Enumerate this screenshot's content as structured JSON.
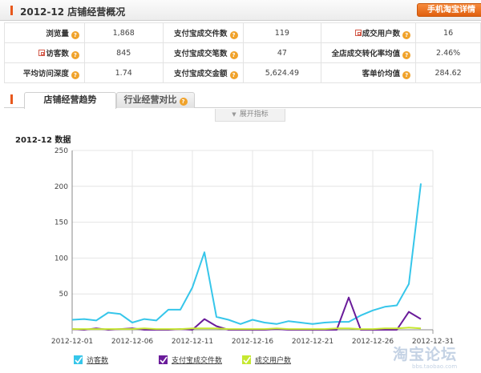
{
  "header": {
    "title": "2012-12 店铺经营概况",
    "mobile_button": "手机淘宝详情"
  },
  "stats": [
    [
      {
        "label": "浏览量",
        "value": "1,868",
        "hui": false
      },
      {
        "label": "支付宝成交件数",
        "value": "119",
        "hui": false
      },
      {
        "label": "成交用户数",
        "value": "16",
        "hui": true
      }
    ],
    [
      {
        "label": "访客数",
        "value": "845",
        "hui": true
      },
      {
        "label": "支付宝成交笔数",
        "value": "47",
        "hui": false
      },
      {
        "label": "全店成交转化率均值",
        "value": "2.46%",
        "hui": false
      }
    ],
    [
      {
        "label": "平均访问深度",
        "value": "1.74",
        "hui": false
      },
      {
        "label": "支付宝成交金额",
        "value": "5,624.49",
        "hui": false
      },
      {
        "label": "客单价均值",
        "value": "284.62",
        "hui": false
      }
    ]
  ],
  "help_icon": "?",
  "tabs": {
    "trend": "店铺经营趋势",
    "compare": "行业经营对比"
  },
  "expand_label": "展开指标",
  "watermark": {
    "logo": "淘宝论坛",
    "sub": "bbs.taobao.com"
  },
  "chart_data": {
    "type": "line",
    "title": "2012-12 数据",
    "x": [
      "2012-12-01",
      "2012-12-02",
      "2012-12-03",
      "2012-12-04",
      "2012-12-05",
      "2012-12-06",
      "2012-12-07",
      "2012-12-08",
      "2012-12-09",
      "2012-12-10",
      "2012-12-11",
      "2012-12-12",
      "2012-12-13",
      "2012-12-14",
      "2012-12-15",
      "2012-12-16",
      "2012-12-17",
      "2012-12-18",
      "2012-12-19",
      "2012-12-20",
      "2012-12-21",
      "2012-12-22",
      "2012-12-23",
      "2012-12-24",
      "2012-12-25",
      "2012-12-26",
      "2012-12-27",
      "2012-12-28",
      "2012-12-29",
      "2012-12-30",
      "2012-12-31"
    ],
    "x_tick_labels": [
      "2012-12-01",
      "2012-12-06",
      "2012-12-11",
      "2012-12-16",
      "2012-12-21",
      "2012-12-26",
      "2012-12-31"
    ],
    "ylim": [
      0,
      250
    ],
    "y_ticks": [
      50,
      100,
      150,
      200,
      250
    ],
    "grid": true,
    "legend_position": "bottom",
    "series": [
      {
        "name": "访客数",
        "color": "#36c6ea",
        "values": [
          14,
          15,
          13,
          24,
          22,
          10,
          15,
          13,
          28,
          28,
          59,
          108,
          18,
          14,
          8,
          14,
          10,
          8,
          12,
          10,
          8,
          10,
          11,
          11,
          20,
          27,
          32,
          34,
          64,
          204,
          null
        ]
      },
      {
        "name": "支付宝成交件数",
        "color": "#6a1b9a",
        "values": [
          1,
          0,
          2,
          0,
          1,
          2,
          0,
          0,
          0,
          1,
          0,
          15,
          5,
          0,
          0,
          0,
          0,
          1,
          0,
          0,
          0,
          0,
          0,
          45,
          0,
          0,
          0,
          0,
          25,
          15,
          null
        ]
      },
      {
        "name": "成交用户数",
        "color": "#c6e830",
        "values": [
          1,
          1,
          1,
          1,
          1,
          1,
          2,
          1,
          1,
          1,
          2,
          2,
          2,
          1,
          1,
          1,
          1,
          2,
          1,
          1,
          1,
          1,
          2,
          2,
          1,
          1,
          2,
          2,
          3,
          2,
          null
        ]
      }
    ]
  }
}
